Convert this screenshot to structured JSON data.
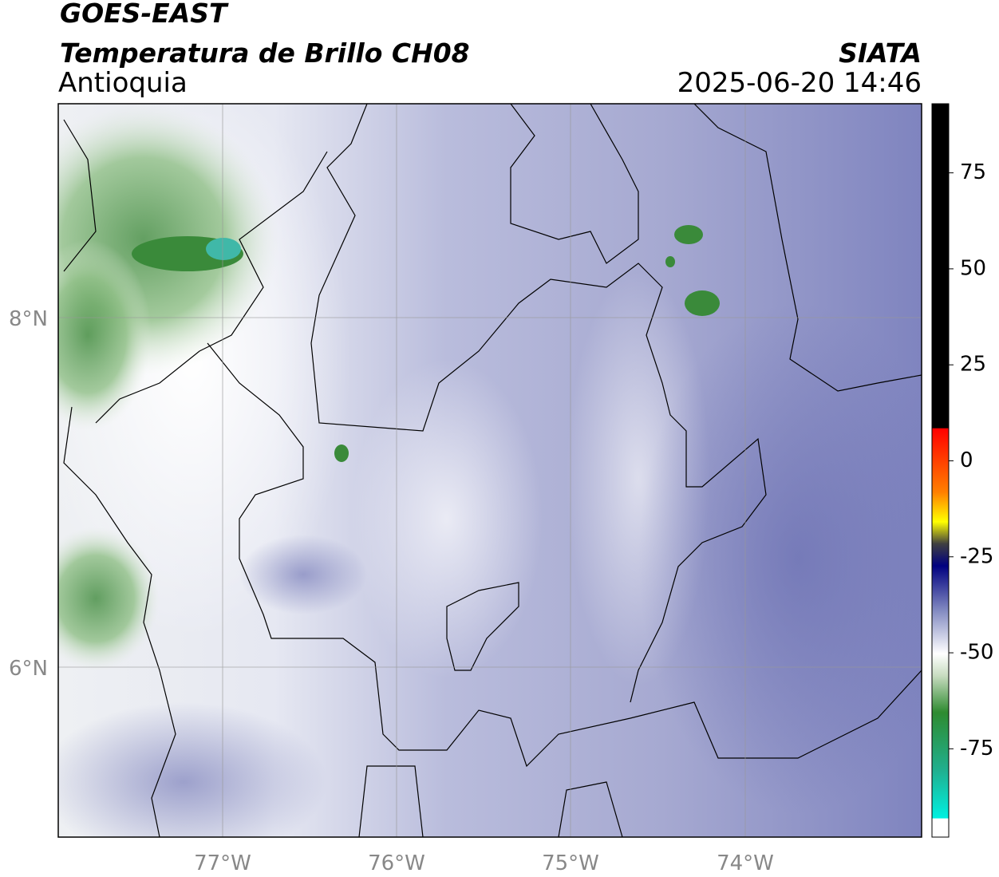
{
  "header": {
    "title": "GOES-EAST",
    "subtitle": "Temperatura de Brillo CH08",
    "region": "Antioquia",
    "source": "SIATA",
    "datetime": "2025-06-20 14:46"
  },
  "map": {
    "lon_labels": [
      "77°W",
      "76°W",
      "75°W",
      "74°W"
    ],
    "lat_labels": [
      "8°N",
      "6°N"
    ]
  },
  "colorbar": {
    "ticks": [
      75,
      50,
      25,
      0,
      -25,
      -50,
      -75
    ],
    "range": [
      -98,
      93
    ]
  }
}
